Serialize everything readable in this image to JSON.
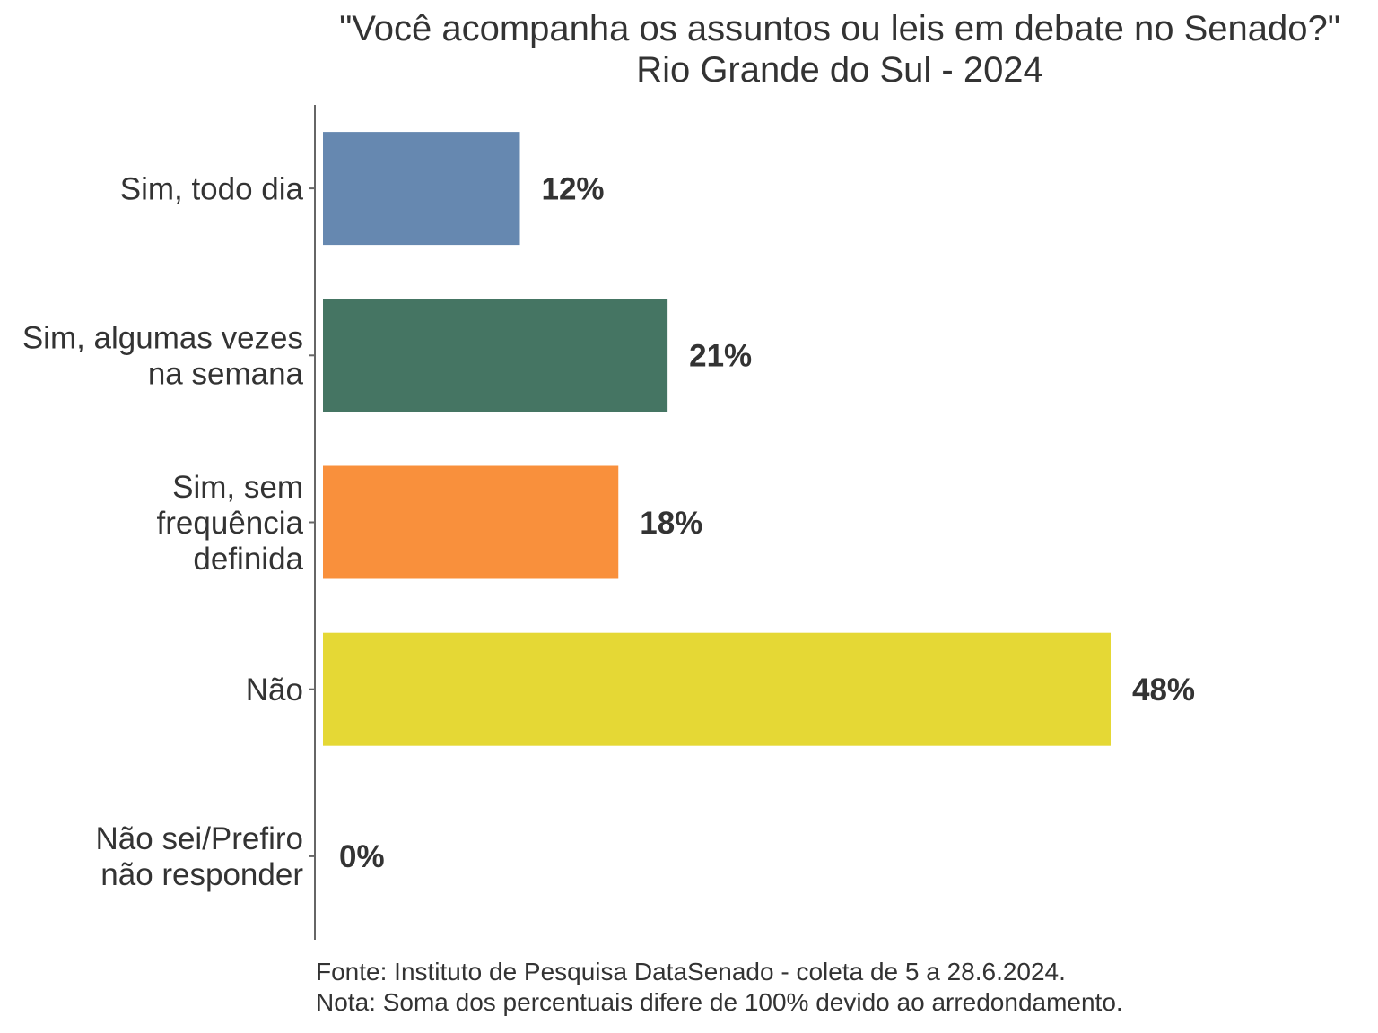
{
  "chart_data": {
    "type": "bar",
    "orientation": "horizontal",
    "title": "\"Você acompanha os assuntos ou leis em debate no Senado?\"",
    "subtitle": "Rio Grande do Sul - 2024",
    "categories": [
      [
        "Sim, todo dia"
      ],
      [
        "Sim, algumas vezes",
        "na semana"
      ],
      [
        "Sim, sem",
        "frequência",
        "definida"
      ],
      [
        "Não"
      ],
      [
        "Não sei/Prefiro",
        "não responder"
      ]
    ],
    "values": [
      12,
      21,
      18,
      48,
      0
    ],
    "data_labels": [
      "12%",
      "21%",
      "18%",
      "48%",
      "0%"
    ],
    "colors": [
      "#6688b0",
      "#457563",
      "#f9903c",
      "#e5d835",
      "#e5d835"
    ],
    "xlim": [
      0,
      52
    ],
    "grid": false,
    "legend": "none"
  },
  "footnotes": {
    "source": "Fonte: Instituto de Pesquisa DataSenado - coleta de 5 a 28.6.2024.",
    "note": "Nota: Soma dos percentuais difere de 100% devido ao arredondamento."
  }
}
